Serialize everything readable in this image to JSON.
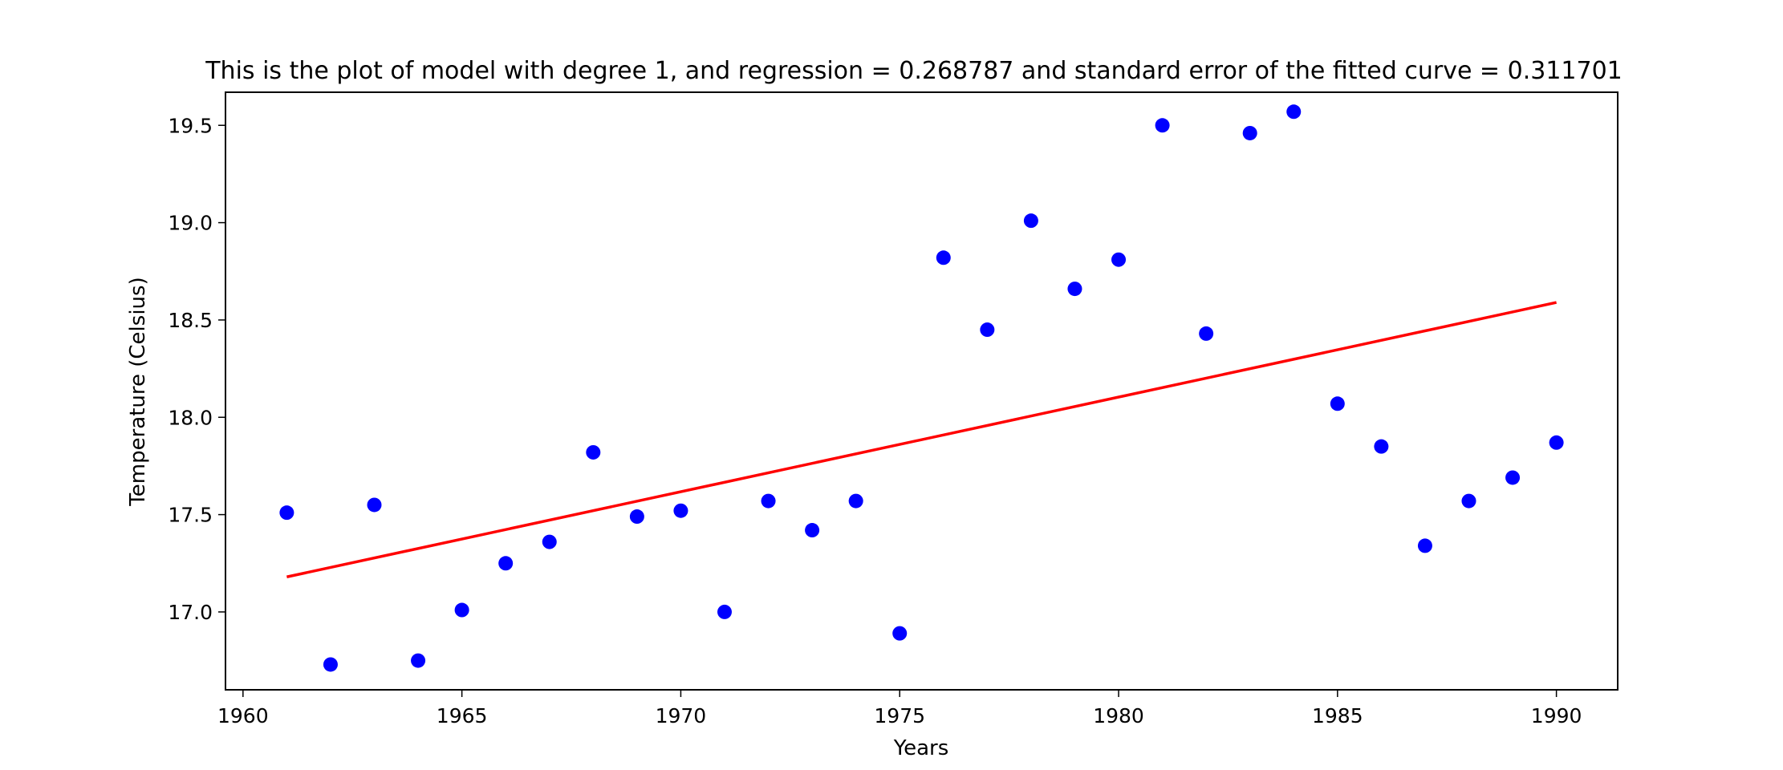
{
  "chart_data": {
    "type": "scatter",
    "title": "This is the plot of model with degree 1, and regression = 0.268787 and standard error of the fitted curve = 0.311701",
    "xlabel": "Years",
    "ylabel": "Temperature (Celsius)",
    "xlim": [
      1959.6,
      1991.4
    ],
    "ylim": [
      16.6,
      19.67
    ],
    "xticks": [
      1960,
      1965,
      1970,
      1975,
      1980,
      1985,
      1990
    ],
    "yticks": [
      17.0,
      17.5,
      18.0,
      18.5,
      19.0,
      19.5
    ],
    "ytick_labels": [
      "17.0",
      "17.5",
      "18.0",
      "18.5",
      "19.0",
      "19.5"
    ],
    "grid": false,
    "series": [
      {
        "kind": "scatter",
        "color": "#0000ff",
        "x": [
          1961,
          1962,
          1963,
          1964,
          1965,
          1966,
          1967,
          1968,
          1969,
          1970,
          1971,
          1972,
          1973,
          1974,
          1975,
          1976,
          1977,
          1978,
          1979,
          1980,
          1981,
          1982,
          1983,
          1984,
          1985,
          1986,
          1987,
          1988,
          1989,
          1990
        ],
        "y": [
          17.51,
          16.73,
          17.55,
          16.75,
          17.01,
          17.25,
          17.36,
          17.82,
          17.49,
          17.52,
          17.0,
          17.57,
          17.42,
          17.57,
          16.89,
          18.82,
          18.45,
          19.01,
          18.66,
          18.81,
          19.5,
          18.43,
          19.46,
          19.57,
          18.07,
          17.85,
          17.34,
          17.57,
          17.69,
          17.87
        ]
      },
      {
        "kind": "line",
        "color": "#ff0000",
        "x": [
          1961,
          1990
        ],
        "y": [
          17.18,
          18.59
        ]
      }
    ]
  }
}
